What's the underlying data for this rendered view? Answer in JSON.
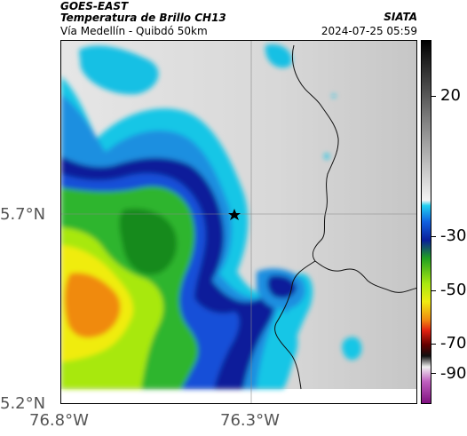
{
  "header": {
    "satellite": "GOES-EAST",
    "product": "Temperatura de Brillo CH13",
    "route": "Vía Medellín - Quibdó 50km",
    "organization": "SIATA",
    "timestamp": "2024-07-25 05:59"
  },
  "axes": {
    "y_labels": [
      "5.7°N",
      "5.2°N"
    ],
    "x_labels": [
      "76.8°W",
      "76.3°W"
    ]
  },
  "colorbar": {
    "labels": [
      "20",
      "-30",
      "-50",
      "-70",
      "-90"
    ],
    "units_range": [
      -95,
      35
    ]
  },
  "map": {
    "marker": "star-marker",
    "colors": {
      "warm_ground": "#d9d9d9",
      "cold_blue": "#0a1f9a",
      "cyan": "#10c8e8",
      "green": "#2fb52f",
      "lime": "#c8f000",
      "yellow": "#f5ee10",
      "orange": "#f08a10"
    }
  }
}
